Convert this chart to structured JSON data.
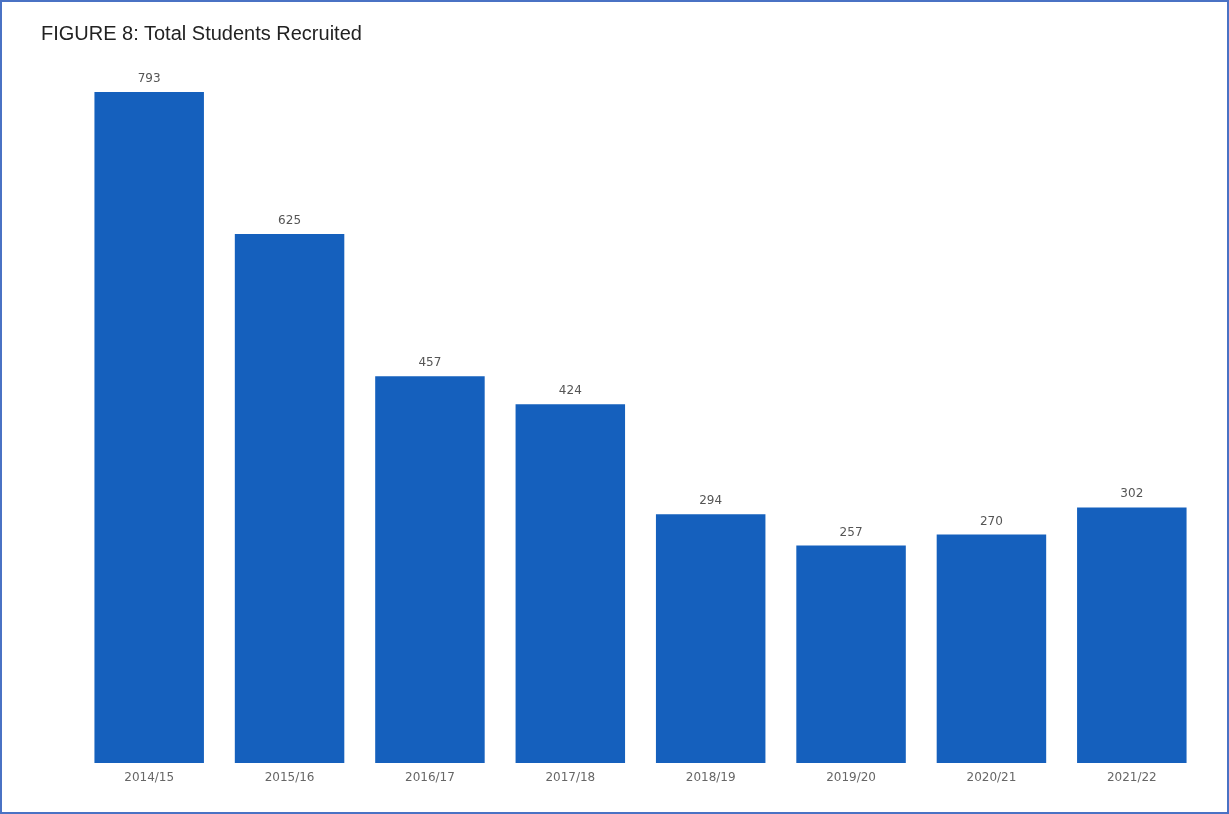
{
  "chart_data": {
    "type": "bar",
    "title": "FIGURE 8: Total Students Recruited",
    "categories": [
      "2014/15",
      "2015/16",
      "2016/17",
      "2017/18",
      "2018/19",
      "2019/20",
      "2020/21",
      "2021/22"
    ],
    "values": [
      793,
      625,
      457,
      424,
      294,
      257,
      270,
      302
    ],
    "color": "#1560bd",
    "data_labels": true
  }
}
